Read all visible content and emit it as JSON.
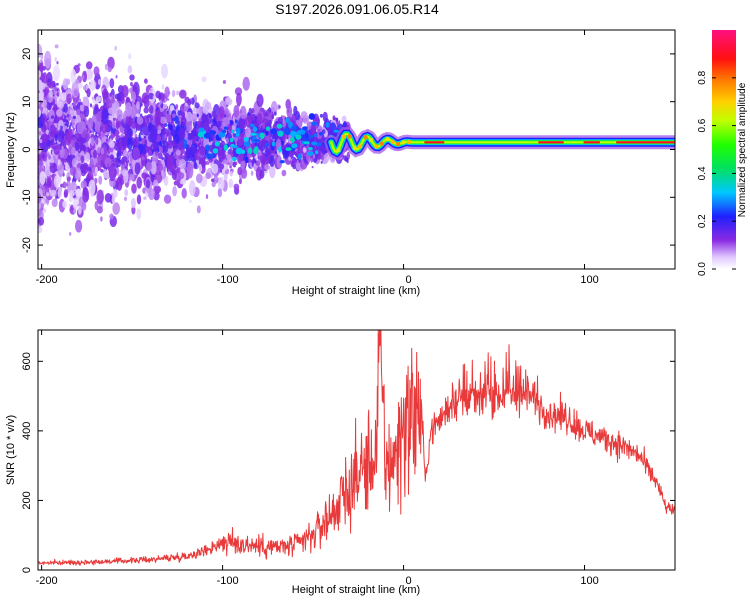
{
  "title": "S197.2026.091.06.05.R14",
  "colors": {
    "snr_line": "#e83a3a",
    "frame": "#000000",
    "background": "#ffffff"
  },
  "chart_data": [
    {
      "type": "heatmap",
      "name": "spectrogram",
      "title": "S197.2026.091.06.05.R14",
      "xlabel": "Height of straight line (km)",
      "ylabel": "Frequency (Hz)",
      "xlim": [
        -202,
        150
      ],
      "ylim": [
        -25,
        25
      ],
      "xticks": [
        -200,
        -100,
        0,
        100
      ],
      "yticks": [
        -20,
        -10,
        0,
        10,
        20
      ],
      "colorbar": {
        "label": "Normalized spectral amplitude",
        "range": [
          0,
          1
        ],
        "ticks": [
          0.0,
          0.2,
          0.4,
          0.6,
          0.8
        ],
        "tick_labels": [
          "0.0",
          "0.2",
          "0.4",
          "0.6",
          "0.8"
        ],
        "colormap": "rainbow (white-violet-blue-cyan-green-yellow-red-magenta)"
      },
      "features": {
        "noise_region_x": [
          -202,
          -35
        ],
        "noise_spread_hz": [
          -25,
          25
        ],
        "carrier_start_x": -40,
        "carrier_frequency_hz": 1.5,
        "carrier_peak_amplitude": 0.9
      }
    },
    {
      "type": "line",
      "name": "snr",
      "xlabel": "Height of straight line (km)",
      "ylabel": "SNR (10 * v/v)",
      "xlim": [
        -202,
        150
      ],
      "ylim": [
        0,
        690
      ],
      "xticks": [
        -200,
        -100,
        0,
        100
      ],
      "yticks": [
        0,
        200,
        400,
        600
      ],
      "series": [
        {
          "name": "SNR",
          "x": [
            -202,
            -180,
            -160,
            -140,
            -120,
            -110,
            -100,
            -90,
            -80,
            -70,
            -60,
            -50,
            -40,
            -35,
            -30,
            -25,
            -20,
            -15,
            -13,
            -10,
            -5,
            0,
            5,
            10,
            12,
            15,
            20,
            25,
            30,
            40,
            50,
            60,
            70,
            75,
            80,
            90,
            100,
            110,
            120,
            130,
            140,
            145,
            150
          ],
          "values": [
            20,
            22,
            25,
            30,
            40,
            55,
            80,
            75,
            70,
            65,
            70,
            100,
            160,
            200,
            230,
            280,
            300,
            340,
            680,
            300,
            320,
            420,
            450,
            460,
            250,
            400,
            430,
            470,
            480,
            490,
            500,
            505,
            500,
            480,
            450,
            440,
            400,
            380,
            360,
            330,
            250,
            180,
            170
          ]
        }
      ]
    }
  ]
}
